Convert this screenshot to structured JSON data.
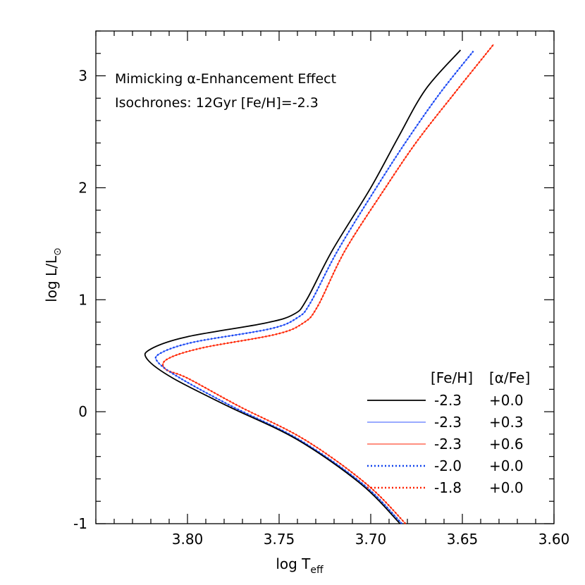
{
  "chart_data": {
    "type": "line",
    "xlabel": "log T",
    "xlabel_sub": "eff",
    "ylabel": "log L/L",
    "ylabel_sub": "⊙",
    "xlim": [
      3.85,
      3.6
    ],
    "ylim": [
      -1.0,
      3.4
    ],
    "x_reversed": true,
    "x_ticks": [
      3.8,
      3.75,
      3.7,
      3.65,
      3.6
    ],
    "x_tick_labels": [
      "3.80",
      "3.75",
      "3.70",
      "3.65",
      "3.60"
    ],
    "y_ticks": [
      -1,
      0,
      1,
      2,
      3
    ],
    "y_tick_labels": [
      "-1",
      "0",
      "1",
      "2",
      "3"
    ],
    "grid": false,
    "annotations": [
      "Mimicking α-Enhancement Effect",
      "Isochrones: 12Gyr [Fe/H]=-2.3"
    ],
    "legend": {
      "position": "bottom-right",
      "headers": [
        "[Fe/H]",
        "[α/Fe]"
      ]
    },
    "series": [
      {
        "name": "-2.3 +0.0",
        "feh": "-2.3",
        "afe": "+0.0",
        "color": "#000000",
        "style": "solid",
        "x": [
          3.684,
          3.705,
          3.74,
          3.778,
          3.808,
          3.822,
          3.82,
          3.8,
          3.758,
          3.742,
          3.735,
          3.721,
          3.7,
          3.685,
          3.67,
          3.651
        ],
        "y": [
          -1.0,
          -0.65,
          -0.25,
          0.05,
          0.3,
          0.47,
          0.56,
          0.67,
          0.79,
          0.87,
          1.0,
          1.44,
          2.0,
          2.45,
          2.88,
          3.23
        ]
      },
      {
        "name": "-2.3 +0.3",
        "feh": "-2.3",
        "afe": "+0.3",
        "color": "#3355ff",
        "style": "solid",
        "x": [
          3.683,
          3.704,
          3.739,
          3.776,
          3.804,
          3.816,
          3.815,
          3.797,
          3.755,
          3.74,
          3.733,
          3.718,
          3.697,
          3.68,
          3.662,
          3.644
        ],
        "y": [
          -1.0,
          -0.65,
          -0.25,
          0.05,
          0.3,
          0.44,
          0.52,
          0.62,
          0.74,
          0.84,
          0.97,
          1.44,
          2.0,
          2.43,
          2.85,
          3.22
        ]
      },
      {
        "name": "-2.3 +0.6",
        "feh": "-2.3",
        "afe": "+0.6",
        "color": "#ff2200",
        "style": "solid",
        "x": [
          3.681,
          3.702,
          3.736,
          3.772,
          3.8,
          3.812,
          3.811,
          3.792,
          3.752,
          3.737,
          3.729,
          3.714,
          3.692,
          3.675,
          3.655,
          3.633
        ],
        "y": [
          -1.0,
          -0.65,
          -0.25,
          0.05,
          0.3,
          0.38,
          0.47,
          0.57,
          0.69,
          0.79,
          0.94,
          1.44,
          2.0,
          2.41,
          2.83,
          3.28
        ]
      },
      {
        "name": "-2.0 +0.0",
        "feh": "-2.0",
        "afe": "+0.0",
        "color": "#1144ee",
        "style": "dotted",
        "x": [
          3.683,
          3.704,
          3.739,
          3.776,
          3.804,
          3.816,
          3.815,
          3.797,
          3.755,
          3.74,
          3.733,
          3.718,
          3.697,
          3.68,
          3.662,
          3.644
        ],
        "y": [
          -1.0,
          -0.65,
          -0.25,
          0.05,
          0.3,
          0.44,
          0.52,
          0.62,
          0.74,
          0.84,
          0.97,
          1.44,
          2.0,
          2.43,
          2.85,
          3.22
        ]
      },
      {
        "name": "-1.8 +0.0",
        "feh": "-1.8",
        "afe": "+0.0",
        "color": "#ff2200",
        "style": "dotted",
        "x": [
          3.681,
          3.702,
          3.736,
          3.772,
          3.8,
          3.812,
          3.811,
          3.792,
          3.752,
          3.737,
          3.729,
          3.714,
          3.692,
          3.675,
          3.655,
          3.633
        ],
        "y": [
          -1.0,
          -0.65,
          -0.25,
          0.05,
          0.3,
          0.38,
          0.47,
          0.57,
          0.69,
          0.79,
          0.94,
          1.44,
          2.0,
          2.41,
          2.83,
          3.28
        ]
      }
    ]
  }
}
